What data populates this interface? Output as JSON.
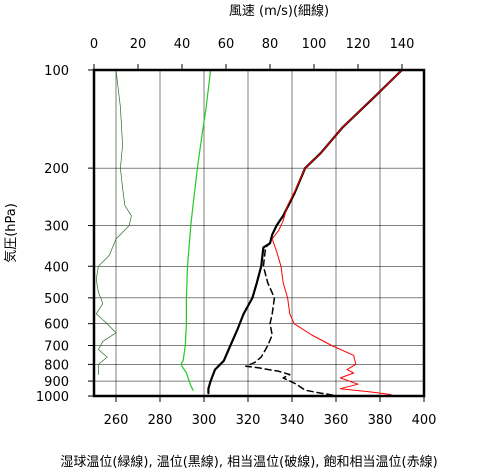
{
  "chart_data": {
    "type": "line",
    "title": "",
    "top_axis_label": "風速 (m/s)(細線)",
    "xlabel": "湿球温位(緑線), 温位(黒線), 相当温位(破線), 飽和相当温位(赤線)",
    "ylabel": "気圧(hPa)",
    "xlim": [
      250,
      400
    ],
    "top_xlim": [
      0,
      150
    ],
    "y_scale": "log",
    "ylim": [
      1000,
      100
    ],
    "grid": true,
    "xticks": [
      260,
      280,
      300,
      320,
      340,
      360,
      380,
      400
    ],
    "top_xticks": [
      0,
      20,
      40,
      60,
      80,
      100,
      120,
      140
    ],
    "yticks": [
      100,
      200,
      300,
      400,
      500,
      600,
      700,
      800,
      900,
      1000
    ],
    "series": [
      {
        "name": "湿球温位",
        "axis": "bottom",
        "style": "solid",
        "color": "#22cc22",
        "width": 1.2,
        "points": [
          [
            303,
            100
          ],
          [
            301,
            130
          ],
          [
            299,
            160
          ],
          [
            297,
            200
          ],
          [
            295,
            260
          ],
          [
            294,
            300
          ],
          [
            292.5,
            400
          ],
          [
            292,
            500
          ],
          [
            292,
            600
          ],
          [
            291.5,
            700
          ],
          [
            290.5,
            780
          ],
          [
            289.5,
            800
          ],
          [
            292,
            850
          ],
          [
            293,
            890
          ],
          [
            294,
            930
          ],
          [
            295,
            960
          ]
        ]
      },
      {
        "name": "温位",
        "axis": "bottom",
        "style": "solid",
        "color": "#000000",
        "width": 2.2,
        "points": [
          [
            390,
            100
          ],
          [
            378,
            120
          ],
          [
            363,
            150
          ],
          [
            353,
            180
          ],
          [
            346,
            200
          ],
          [
            341,
            240
          ],
          [
            336,
            280
          ],
          [
            333,
            300
          ],
          [
            331,
            320
          ],
          [
            330,
            340
          ],
          [
            327,
            350
          ],
          [
            326,
            400
          ],
          [
            324,
            450
          ],
          [
            322,
            500
          ],
          [
            318,
            560
          ],
          [
            315,
            630
          ],
          [
            312,
            700
          ],
          [
            309,
            780
          ],
          [
            305,
            830
          ],
          [
            303,
            900
          ],
          [
            302,
            950
          ],
          [
            302,
            980
          ]
        ]
      },
      {
        "name": "相当温位",
        "axis": "bottom",
        "style": "dashed",
        "color": "#000000",
        "width": 1.5,
        "points": [
          [
            390,
            100
          ],
          [
            378,
            120
          ],
          [
            363,
            150
          ],
          [
            353,
            180
          ],
          [
            346,
            200
          ],
          [
            341,
            240
          ],
          [
            336,
            280
          ],
          [
            333,
            300
          ],
          [
            331,
            320
          ],
          [
            330,
            340
          ],
          [
            328,
            350
          ],
          [
            327,
            400
          ],
          [
            329,
            450
          ],
          [
            332,
            500
          ],
          [
            331,
            560
          ],
          [
            330,
            600
          ],
          [
            331,
            650
          ],
          [
            329,
            700
          ],
          [
            326,
            760
          ],
          [
            323,
            790
          ],
          [
            319,
            810
          ],
          [
            325,
            820
          ],
          [
            334,
            840
          ],
          [
            339,
            860
          ],
          [
            336,
            880
          ],
          [
            342,
            920
          ],
          [
            346,
            960
          ],
          [
            353,
            980
          ],
          [
            361,
            1000
          ]
        ]
      },
      {
        "name": "飽和相当温位",
        "axis": "bottom",
        "style": "solid",
        "color": "#ff0000",
        "width": 1.0,
        "points": [
          [
            390,
            100
          ],
          [
            378,
            120
          ],
          [
            363,
            150
          ],
          [
            353,
            180
          ],
          [
            346,
            200
          ],
          [
            342,
            230
          ],
          [
            338,
            260
          ],
          [
            336,
            290
          ],
          [
            334,
            310
          ],
          [
            331,
            330
          ],
          [
            333,
            360
          ],
          [
            335,
            400
          ],
          [
            336,
            450
          ],
          [
            338,
            500
          ],
          [
            339,
            560
          ],
          [
            341,
            600
          ],
          [
            349,
            650
          ],
          [
            358,
            700
          ],
          [
            368,
            750
          ],
          [
            369,
            800
          ],
          [
            365,
            830
          ],
          [
            368,
            850
          ],
          [
            362,
            880
          ],
          [
            370,
            920
          ],
          [
            362,
            950
          ],
          [
            375,
            970
          ],
          [
            385,
            990
          ]
        ]
      },
      {
        "name": "風速",
        "axis": "top",
        "style": "solid",
        "color": "#2e6b2e",
        "width": 0.7,
        "points": [
          [
            10,
            100
          ],
          [
            12,
            130
          ],
          [
            13,
            170
          ],
          [
            12,
            200
          ],
          [
            13,
            230
          ],
          [
            14,
            260
          ],
          [
            17,
            280
          ],
          [
            16,
            300
          ],
          [
            10,
            330
          ],
          [
            7,
            370
          ],
          [
            2,
            400
          ],
          [
            1,
            440
          ],
          [
            2,
            480
          ],
          [
            4,
            520
          ],
          [
            1,
            560
          ],
          [
            6,
            600
          ],
          [
            10,
            640
          ],
          [
            4,
            680
          ],
          [
            2,
            720
          ],
          [
            6,
            760
          ],
          [
            2,
            800
          ],
          [
            2,
            860
          ]
        ]
      }
    ]
  }
}
